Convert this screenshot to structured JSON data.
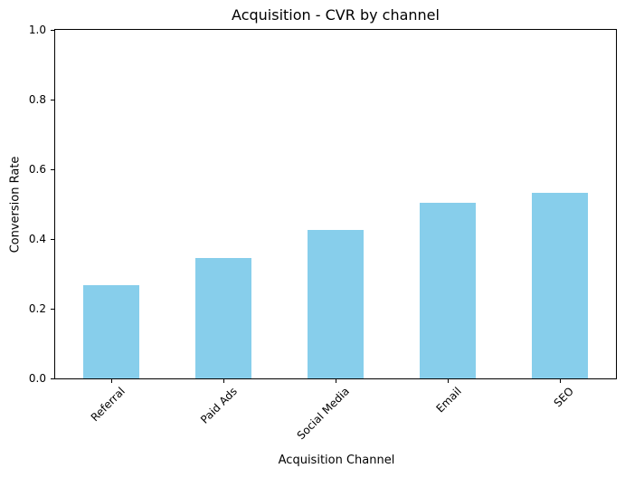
{
  "chart_data": {
    "type": "bar",
    "title": "Acquisition - CVR by channel",
    "xlabel": "Acquisition Channel",
    "ylabel": "Conversion Rate",
    "categories": [
      "Referral",
      "Paid Ads",
      "Social Media",
      "Email",
      "SEO"
    ],
    "values": [
      0.267,
      0.345,
      0.425,
      0.505,
      0.533
    ],
    "ylim": [
      0.0,
      1.0
    ],
    "yticks": [
      0.0,
      0.2,
      0.4,
      0.6,
      0.8,
      1.0
    ],
    "bar_color": "#87CEEB",
    "grid": false,
    "legend": "none",
    "x_tick_rotation": 45,
    "background_color": "#ffffff"
  }
}
